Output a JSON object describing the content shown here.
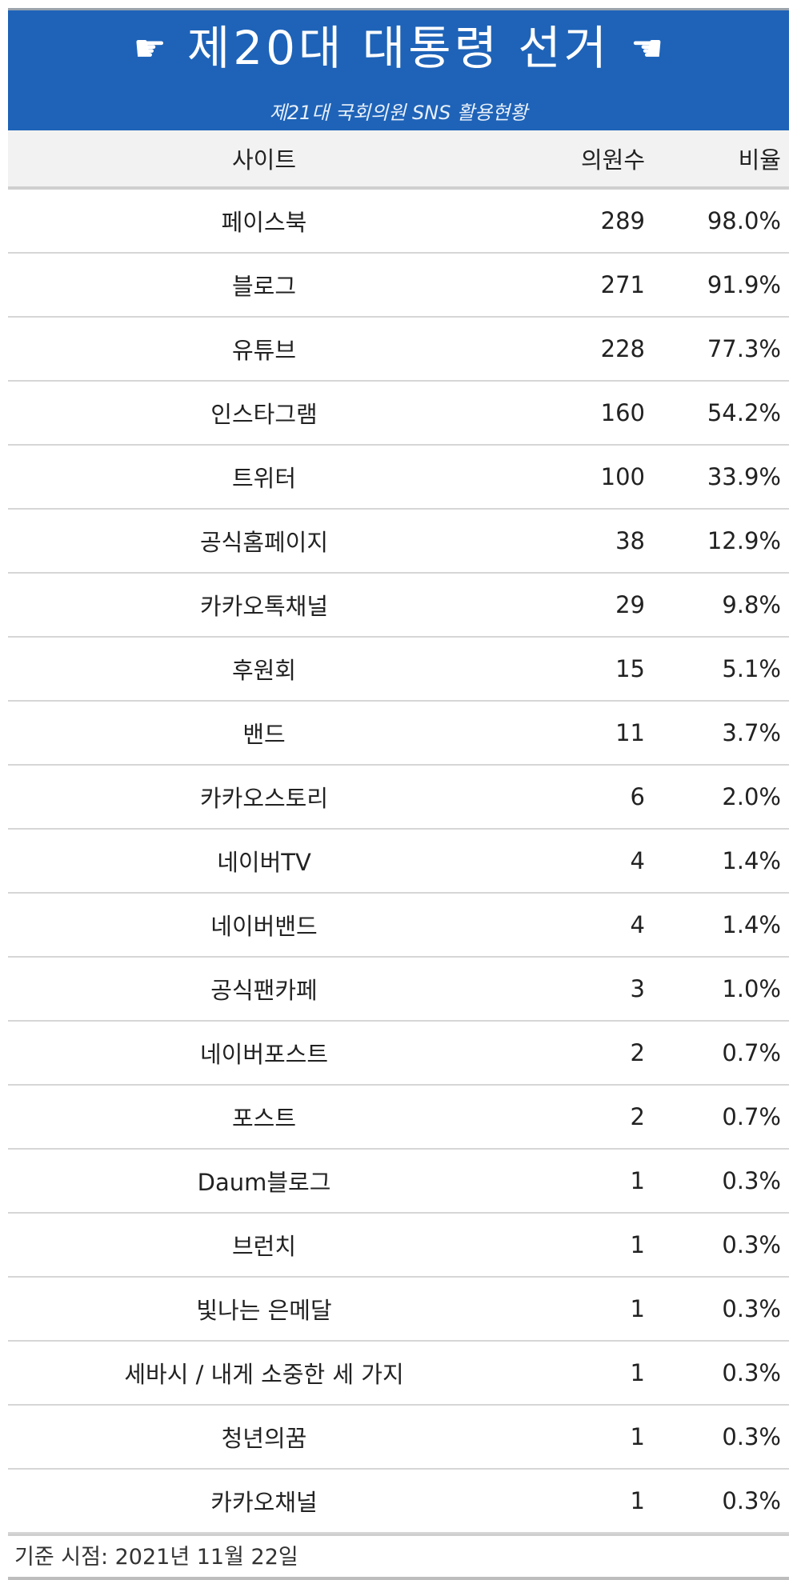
{
  "header": {
    "title": "제20대 대통령 선거",
    "subtitle": "제21대 국회의원 SNS 활용현황",
    "left_icon": "pointing-hand-right-icon",
    "right_icon": "pointing-hand-left-icon",
    "hand_glyph": "☛",
    "bg_color": "#1e63b8"
  },
  "table": {
    "columns": {
      "site": "사이트",
      "count": "의원수",
      "rate": "비율"
    },
    "rows": [
      {
        "site": "페이스북",
        "count": "289",
        "rate": "98.0%"
      },
      {
        "site": "블로그",
        "count": "271",
        "rate": "91.9%"
      },
      {
        "site": "유튜브",
        "count": "228",
        "rate": "77.3%"
      },
      {
        "site": "인스타그램",
        "count": "160",
        "rate": "54.2%"
      },
      {
        "site": "트위터",
        "count": "100",
        "rate": "33.9%"
      },
      {
        "site": "공식홈페이지",
        "count": "38",
        "rate": "12.9%"
      },
      {
        "site": "카카오톡채널",
        "count": "29",
        "rate": "9.8%"
      },
      {
        "site": "후원회",
        "count": "15",
        "rate": "5.1%"
      },
      {
        "site": "밴드",
        "count": "11",
        "rate": "3.7%"
      },
      {
        "site": "카카오스토리",
        "count": "6",
        "rate": "2.0%"
      },
      {
        "site": "네이버TV",
        "count": "4",
        "rate": "1.4%"
      },
      {
        "site": "네이버밴드",
        "count": "4",
        "rate": "1.4%"
      },
      {
        "site": "공식팬카페",
        "count": "3",
        "rate": "1.0%"
      },
      {
        "site": "네이버포스트",
        "count": "2",
        "rate": "0.7%"
      },
      {
        "site": "포스트",
        "count": "2",
        "rate": "0.7%"
      },
      {
        "site": "Daum블로그",
        "count": "1",
        "rate": "0.3%"
      },
      {
        "site": "브런치",
        "count": "1",
        "rate": "0.3%"
      },
      {
        "site": "빛나는 은메달",
        "count": "1",
        "rate": "0.3%"
      },
      {
        "site": "세바시 / 내게 소중한 세 가지",
        "count": "1",
        "rate": "0.3%"
      },
      {
        "site": "청년의꿈",
        "count": "1",
        "rate": "0.3%"
      },
      {
        "site": "카카오채널",
        "count": "1",
        "rate": "0.3%"
      }
    ]
  },
  "footer": {
    "note": "기준 시점: 2021년 11월 22일"
  }
}
